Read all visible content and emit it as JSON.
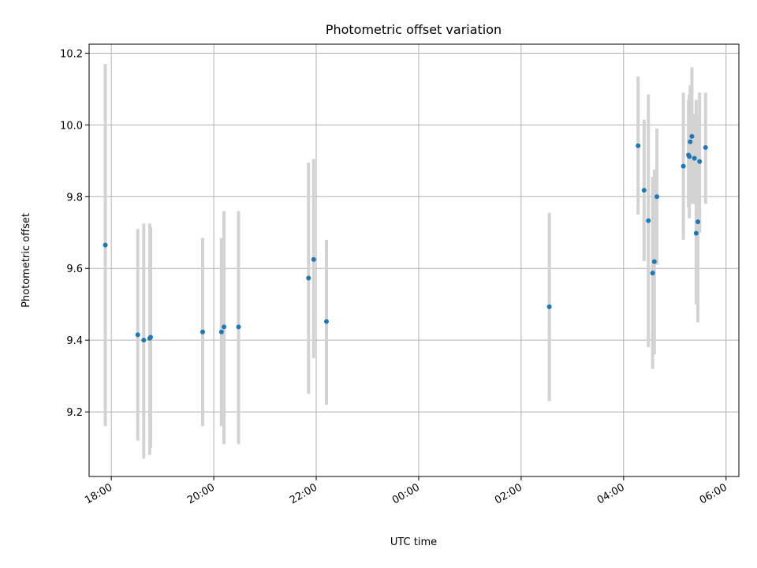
{
  "chart_data": {
    "type": "scatter",
    "title": "Photometric offset variation",
    "xlabel": "UTC time",
    "ylabel": "Photometric offset",
    "x_axis_type": "time",
    "xlim": [
      "17:34",
      "06:15"
    ],
    "ylim": [
      9.02,
      10.225
    ],
    "x_ticks": [
      "18:00",
      "20:00",
      "22:00",
      "00:00",
      "02:00",
      "04:00",
      "06:00"
    ],
    "y_ticks": [
      9.2,
      9.4,
      9.6,
      9.8,
      10.0,
      10.2
    ],
    "y_tick_labels": [
      "9.2",
      "9.4",
      "9.6",
      "9.8",
      "10.0",
      "10.2"
    ],
    "grid": true,
    "series": [
      {
        "marker_color": "#1f77b4",
        "errorbar_color": "#d3d3d3",
        "points": [
          {
            "x": "17:53",
            "y": 9.665,
            "lo": 9.16,
            "hi": 10.17
          },
          {
            "x": "18:31",
            "y": 9.415,
            "lo": 9.12,
            "hi": 9.71
          },
          {
            "x": "18:38",
            "y": 9.4,
            "lo": 9.07,
            "hi": 9.725
          },
          {
            "x": "18:45",
            "y": 9.405,
            "lo": 9.08,
            "hi": 9.725
          },
          {
            "x": "18:46",
            "y": 9.408,
            "lo": 9.1,
            "hi": 9.715
          },
          {
            "x": "19:47",
            "y": 9.423,
            "lo": 9.16,
            "hi": 9.685
          },
          {
            "x": "20:09",
            "y": 9.423,
            "lo": 9.16,
            "hi": 9.685
          },
          {
            "x": "20:12",
            "y": 9.437,
            "lo": 9.11,
            "hi": 9.76
          },
          {
            "x": "20:29",
            "y": 9.437,
            "lo": 9.11,
            "hi": 9.76
          },
          {
            "x": "21:51",
            "y": 9.573,
            "lo": 9.25,
            "hi": 9.895
          },
          {
            "x": "21:57",
            "y": 9.625,
            "lo": 9.35,
            "hi": 9.905
          },
          {
            "x": "22:12",
            "y": 9.452,
            "lo": 9.22,
            "hi": 9.68
          },
          {
            "x": "02:33",
            "y": 9.493,
            "lo": 9.23,
            "hi": 9.755
          },
          {
            "x": "04:17",
            "y": 9.942,
            "lo": 9.75,
            "hi": 10.135
          },
          {
            "x": "04:24",
            "y": 9.818,
            "lo": 9.62,
            "hi": 10.015
          },
          {
            "x": "04:29",
            "y": 9.733,
            "lo": 9.38,
            "hi": 10.085
          },
          {
            "x": "04:34",
            "y": 9.587,
            "lo": 9.32,
            "hi": 9.855
          },
          {
            "x": "04:36",
            "y": 9.619,
            "lo": 9.36,
            "hi": 9.875
          },
          {
            "x": "04:39",
            "y": 9.8,
            "lo": 9.61,
            "hi": 9.99
          },
          {
            "x": "05:10",
            "y": 9.885,
            "lo": 9.68,
            "hi": 10.09
          },
          {
            "x": "05:16",
            "y": 9.916,
            "lo": 9.77,
            "hi": 10.07
          },
          {
            "x": "05:17",
            "y": 9.912,
            "lo": 9.74,
            "hi": 10.085
          },
          {
            "x": "05:18",
            "y": 9.953,
            "lo": 9.79,
            "hi": 10.11
          },
          {
            "x": "05:20",
            "y": 9.968,
            "lo": 9.78,
            "hi": 10.16
          },
          {
            "x": "05:23",
            "y": 9.907,
            "lo": 9.78,
            "hi": 10.03
          },
          {
            "x": "05:25",
            "y": 9.698,
            "lo": 9.5,
            "hi": 10.07
          },
          {
            "x": "05:27",
            "y": 9.73,
            "lo": 9.45,
            "hi": 10.025
          },
          {
            "x": "05:29",
            "y": 9.898,
            "lo": 9.7,
            "hi": 10.09
          },
          {
            "x": "05:36",
            "y": 9.937,
            "lo": 9.78,
            "hi": 10.09
          }
        ]
      }
    ]
  }
}
